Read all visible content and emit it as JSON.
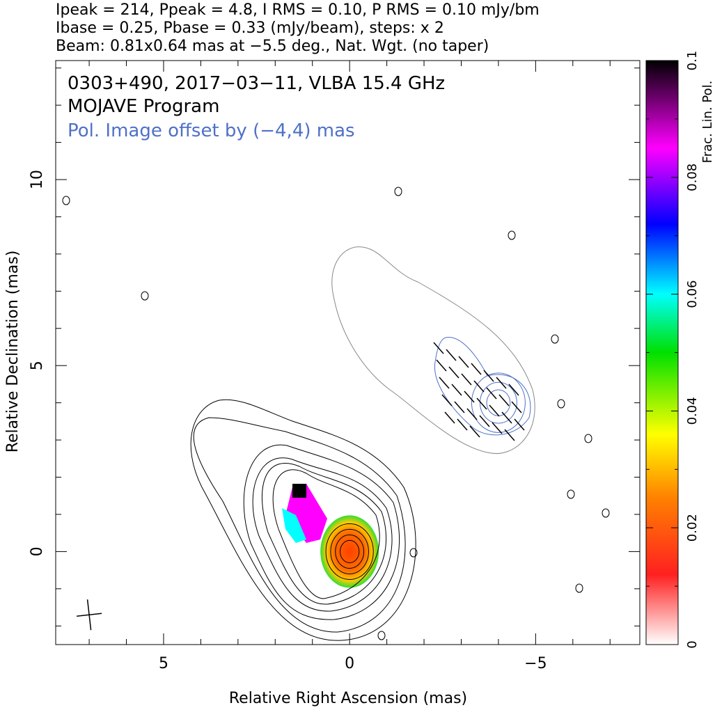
{
  "header": {
    "line1": "Ipeak = 214, Ppeak = 4.8, I RMS = 0.10, P RMS = 0.10 mJy/bm",
    "line2": "Ibase = 0.25, Pbase = 0.33 (mJy/beam), steps: x 2",
    "line3": "Beam: 0.81x0.64 mas at −5.5 deg., Nat. Wgt. (no taper)"
  },
  "chart_data": {
    "type": "contour",
    "title_lines": [
      "0303+490, 2017−03−11, VLBA 15.4 GHz",
      "MOJAVE Program"
    ],
    "offset_note": "Pol. Image offset by (−4,4) mas",
    "xlabel": "Relative Right Ascension (mas)",
    "ylabel": "Relative Declination (mas)",
    "xlim": [
      7.9,
      -7.8
    ],
    "ylim": [
      -2.5,
      13.2
    ],
    "x_ticks": [
      5,
      0,
      -5
    ],
    "x_tick_labels": [
      "5",
      "0",
      "−5"
    ],
    "y_ticks": [
      0,
      5,
      10
    ],
    "y_tick_labels": [
      "0",
      "5",
      "10"
    ],
    "stokes_i_contours": {
      "center": [
        0,
        0
      ],
      "core_radii_mas": [
        0.3,
        0.45,
        0.6,
        0.75
      ],
      "jet_position_angle_deg": 50,
      "jet_extent_mas": 4.3
    },
    "pol_image": {
      "offset_mas": [
        -4,
        4
      ],
      "core_center_mas": [
        -4,
        4
      ],
      "evpa_note": "vectors"
    },
    "colorbar": {
      "label": "Frac. Lin. Pol.",
      "range": [
        0,
        0.1
      ],
      "ticks": [
        0,
        0.02,
        0.04,
        0.06,
        0.08,
        0.1
      ],
      "tick_labels": [
        "0",
        "0.02",
        "0.04",
        "0.06",
        "0.08",
        "0.1"
      ],
      "colormap": [
        "#ffffff",
        "#ff0000",
        "#ff8000",
        "#ffff00",
        "#00dd00",
        "#00ffff",
        "#0000ff",
        "#ff00ff",
        "#000000"
      ]
    },
    "beam": {
      "major_mas": 0.81,
      "minor_mas": 0.64,
      "pa_deg": -5.5,
      "position_mas": [
        7.0,
        -1.7
      ]
    }
  },
  "colors": {
    "contour": "#000000",
    "pol_contour": "#4f70c8",
    "pol_contour_outer": "#888888",
    "overlay_text": "#4f70c8"
  }
}
